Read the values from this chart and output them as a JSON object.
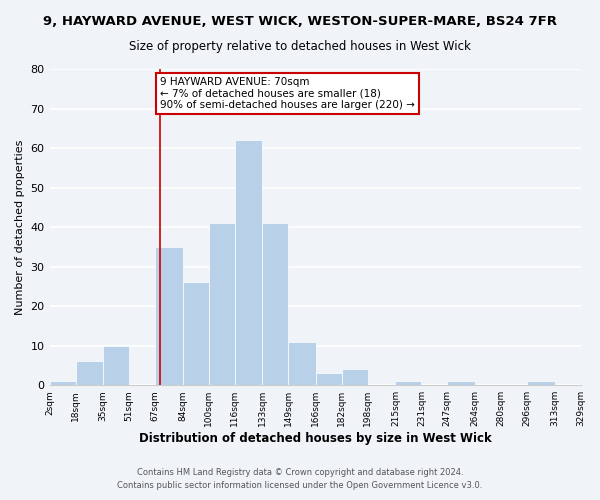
{
  "title": "9, HAYWARD AVENUE, WEST WICK, WESTON-SUPER-MARE, BS24 7FR",
  "subtitle": "Size of property relative to detached houses in West Wick",
  "xlabel": "Distribution of detached houses by size in West Wick",
  "ylabel": "Number of detached properties",
  "bin_edges": [
    2,
    18,
    35,
    51,
    67,
    84,
    100,
    116,
    133,
    149,
    166,
    182,
    198,
    215,
    231,
    247,
    264,
    280,
    296,
    313,
    329
  ],
  "bin_labels": [
    "2sqm",
    "18sqm",
    "35sqm",
    "51sqm",
    "67sqm",
    "84sqm",
    "100sqm",
    "116sqm",
    "133sqm",
    "149sqm",
    "166sqm",
    "182sqm",
    "198sqm",
    "215sqm",
    "231sqm",
    "247sqm",
    "264sqm",
    "280sqm",
    "296sqm",
    "313sqm",
    "329sqm"
  ],
  "counts": [
    1,
    6,
    10,
    0,
    35,
    26,
    41,
    62,
    41,
    11,
    3,
    4,
    0,
    1,
    0,
    1,
    0,
    0,
    1,
    0
  ],
  "bar_color": "#b8d0e8",
  "bar_edge_color": "#ffffff",
  "property_line_x": 70,
  "property_line_color": "#cc0000",
  "annotation_text": "9 HAYWARD AVENUE: 70sqm\n← 7% of detached houses are smaller (18)\n90% of semi-detached houses are larger (220) →",
  "annotation_box_color": "#ffffff",
  "annotation_box_edge": "#cc0000",
  "ylim": [
    0,
    80
  ],
  "yticks": [
    0,
    10,
    20,
    30,
    40,
    50,
    60,
    70,
    80
  ],
  "footer1": "Contains HM Land Registry data © Crown copyright and database right 2024.",
  "footer2": "Contains public sector information licensed under the Open Government Licence v3.0.",
  "background_color": "#f0f4f8",
  "grid_color": "#ffffff"
}
